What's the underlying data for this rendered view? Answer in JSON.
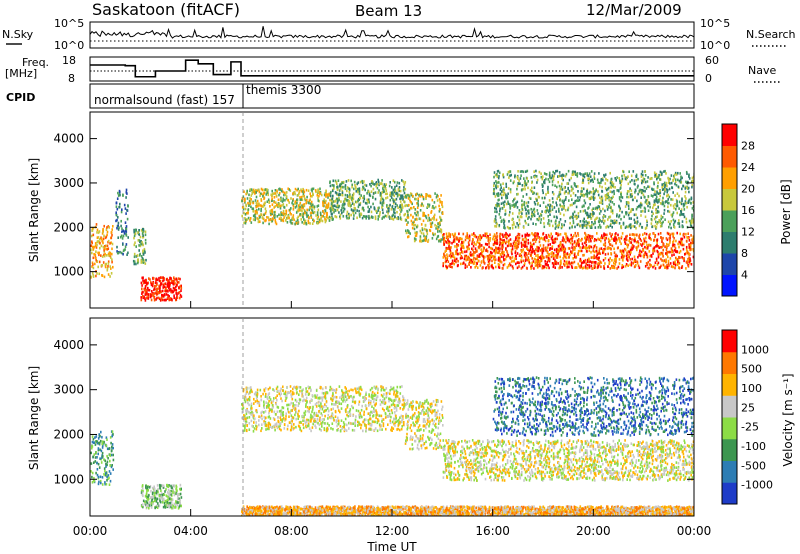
{
  "header": {
    "station": "Saskatoon (fitACF)",
    "beam": "Beam 13",
    "date": "12/Mar/2009"
  },
  "sky_panel": {
    "left_label": "N.Sky",
    "right_label": "N.Search",
    "left_ticks": [
      "10^5",
      "10^0"
    ],
    "right_ticks": [
      "10^5",
      "10^0"
    ]
  },
  "freq_panel": {
    "left_label_line1": "Freq.",
    "left_label_line2": "[MHz]",
    "right_label": "Nave",
    "left_ticks": [
      "18",
      "8"
    ],
    "right_ticks": [
      "60",
      "0"
    ],
    "freq_steps": [
      {
        "t": 0.0,
        "mhz": 15.5
      },
      {
        "t": 1.4,
        "mhz": 15.2
      },
      {
        "t": 1.8,
        "mhz": 10.6
      },
      {
        "t": 2.6,
        "mhz": 13.0
      },
      {
        "t": 3.8,
        "mhz": 17.5
      },
      {
        "t": 4.3,
        "mhz": 16.0
      },
      {
        "t": 4.9,
        "mhz": 11.5
      },
      {
        "t": 5.6,
        "mhz": 16.8
      },
      {
        "t": 6.0,
        "mhz": 11.0
      },
      {
        "t": 24.0,
        "mhz": 11.0
      }
    ]
  },
  "cpid": {
    "label": "CPID",
    "modes": [
      {
        "name": "normalsound (fast) 157",
        "start": 0.0
      },
      {
        "name": "themis 3300",
        "start": 6.0
      }
    ]
  },
  "chart_data": [
    {
      "type": "heatmap",
      "title": "Power",
      "ylabel": "Slant Range [km]",
      "ylim": [
        180,
        4600
      ],
      "yticks": [
        1000,
        2000,
        3000,
        4000
      ],
      "colorbar_label": "Power [dB]",
      "colorbar_ticks": [
        "28",
        "24",
        "20",
        "16",
        "12",
        "8",
        "4"
      ],
      "colors": [
        "#0014ff",
        "#1e46aa",
        "#2d7d6e",
        "#4ba05a",
        "#c8c83c",
        "#ff9f00",
        "#ff5a00",
        "#ff0000"
      ],
      "scatter_bands": [
        {
          "t0": 0.0,
          "t1": 0.9,
          "r0": 900,
          "r1": 2100,
          "level": 5
        },
        {
          "t0": 1.0,
          "t1": 1.5,
          "r0": 1400,
          "r1": 2900,
          "level": 2
        },
        {
          "t0": 2.0,
          "t1": 3.6,
          "r0": 380,
          "r1": 900,
          "level": 7
        },
        {
          "t0": 1.7,
          "t1": 2.2,
          "r0": 1200,
          "r1": 2000,
          "level": 3
        },
        {
          "t0": 6.0,
          "t1": 9.5,
          "r0": 2100,
          "r1": 2900,
          "level": 4
        },
        {
          "t0": 9.5,
          "t1": 12.5,
          "r0": 2200,
          "r1": 3100,
          "level": 3
        },
        {
          "t0": 12.5,
          "t1": 14.0,
          "r0": 1700,
          "r1": 2800,
          "level": 4
        },
        {
          "t0": 14.0,
          "t1": 24.0,
          "r0": 1100,
          "r1": 1900,
          "level": 6
        },
        {
          "t0": 16.0,
          "t1": 24.0,
          "r0": 2000,
          "r1": 3300,
          "level": 3
        }
      ]
    },
    {
      "type": "heatmap",
      "title": "Velocity",
      "ylabel": "Slant Range [km]",
      "ylim": [
        180,
        4600
      ],
      "yticks": [
        1000,
        2000,
        3000,
        4000
      ],
      "colorbar_label": "Velocity [m s^-1]",
      "colorbar_ticks": [
        "1000",
        "500",
        "100",
        "25",
        "-25",
        "-100",
        "-500",
        "-1000"
      ],
      "colors": [
        "#1e3cc8",
        "#2d7db4",
        "#3c9650",
        "#8cdc46",
        "#c8c8c8",
        "#ffb400",
        "#ff7800",
        "#ff0000"
      ],
      "scatter_bands": [
        {
          "t0": 0.0,
          "t1": 0.9,
          "r0": 900,
          "r1": 2100,
          "level": 2
        },
        {
          "t0": 2.0,
          "t1": 3.6,
          "r0": 380,
          "r1": 900,
          "level": 3
        },
        {
          "t0": 6.0,
          "t1": 12.5,
          "r0": 2100,
          "r1": 3100,
          "level": 4
        },
        {
          "t0": 12.5,
          "t1": 14.0,
          "r0": 1700,
          "r1": 2800,
          "level": 4
        },
        {
          "t0": 14.0,
          "t1": 24.0,
          "r0": 1000,
          "r1": 1900,
          "level": 4
        },
        {
          "t0": 16.0,
          "t1": 24.0,
          "r0": 2000,
          "r1": 3300,
          "level": 1
        },
        {
          "t0": 6.0,
          "t1": 24.0,
          "r0": 200,
          "r1": 420,
          "level": 5
        }
      ]
    }
  ],
  "x_axis": {
    "label": "Time UT",
    "range": [
      0,
      24
    ],
    "ticks": [
      "00:00",
      "04:00",
      "08:00",
      "12:00",
      "16:00",
      "20:00",
      "00:00"
    ]
  }
}
